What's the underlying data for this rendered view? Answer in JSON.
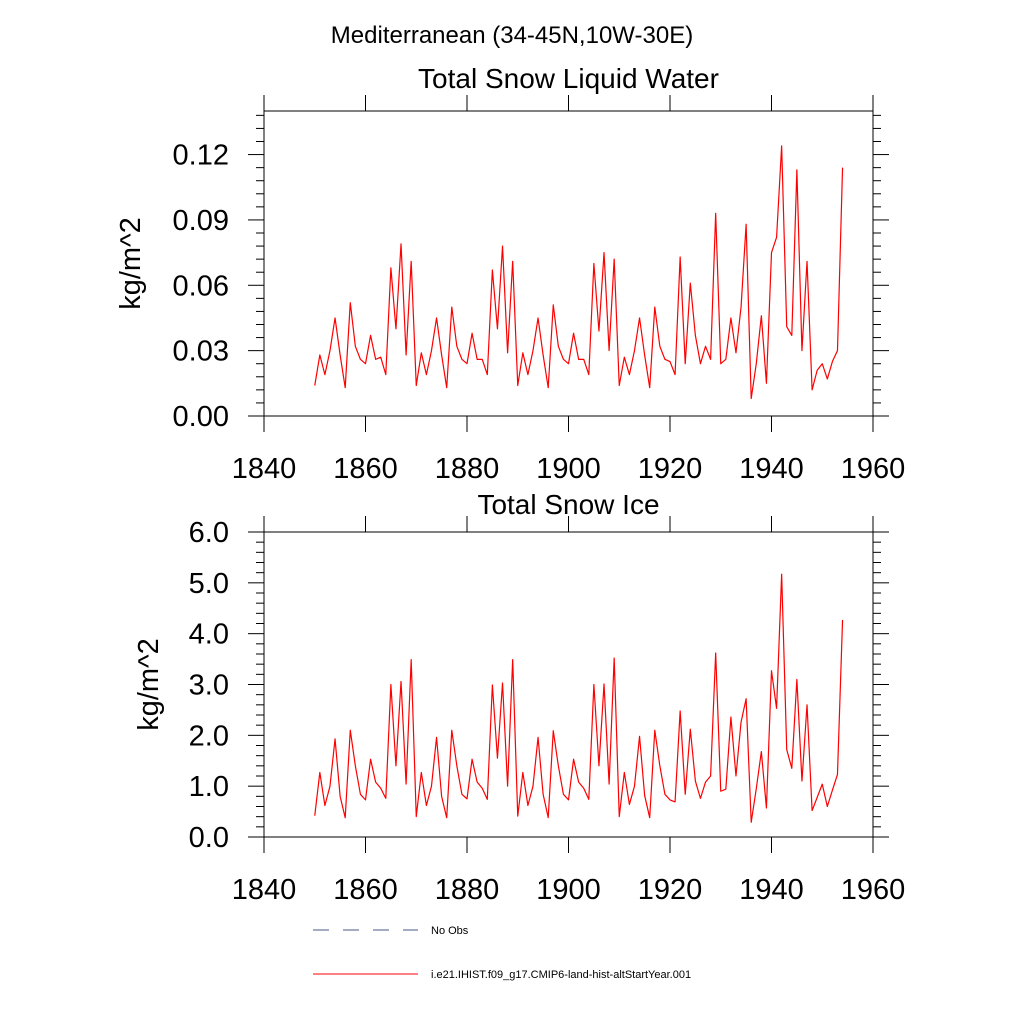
{
  "figure_title": "Mediterranean (34-45N,10W-30E)",
  "legend": {
    "obs_label": "No Obs",
    "model_label": "i.e21.IHIST.f09_g17.CMIP6-land-hist-altStartYear.001",
    "obs_color": "#4a5a8a",
    "model_color": "#ff0000"
  },
  "chart_data": [
    {
      "type": "line",
      "title": "Total Snow Liquid Water",
      "xlabel": "",
      "ylabel": "kg/m^2",
      "xlim": [
        1840,
        1960
      ],
      "ylim": [
        0,
        0.14
      ],
      "xticks": [
        1840,
        1860,
        1880,
        1900,
        1920,
        1940,
        1960
      ],
      "xtick_labels": [
        "1840",
        "1860",
        "1880",
        "1900",
        "1920",
        "1940",
        "1960"
      ],
      "yticks": [
        0,
        0.03,
        0.06,
        0.09,
        0.12
      ],
      "ytick_labels": [
        "0.00",
        "0.03",
        "0.06",
        "0.09",
        "0.12"
      ],
      "grid": false,
      "series": [
        {
          "color": "#ff0000",
          "x": [
            1850,
            1851,
            1852,
            1853,
            1854,
            1855,
            1856,
            1857,
            1858,
            1859,
            1860,
            1861,
            1862,
            1863,
            1864,
            1865,
            1866,
            1867,
            1868,
            1869,
            1870,
            1871,
            1872,
            1873,
            1874,
            1875,
            1876,
            1877,
            1878,
            1879,
            1880,
            1881,
            1882,
            1883,
            1884,
            1885,
            1886,
            1887,
            1888,
            1889,
            1890,
            1891,
            1892,
            1893,
            1894,
            1895,
            1896,
            1897,
            1898,
            1899,
            1900,
            1901,
            1902,
            1903,
            1904,
            1905,
            1906,
            1907,
            1908,
            1909,
            1910,
            1911,
            1912,
            1913,
            1914,
            1915,
            1916,
            1917,
            1918,
            1919,
            1920,
            1921,
            1922,
            1923,
            1924,
            1925,
            1926,
            1927,
            1928,
            1929,
            1930,
            1931,
            1932,
            1933,
            1934,
            1935,
            1936,
            1937,
            1938,
            1939,
            1940,
            1941,
            1942,
            1943,
            1944,
            1945,
            1946,
            1947,
            1948,
            1949,
            1950,
            1951,
            1952,
            1953,
            1954
          ],
          "values": [
            0.014,
            0.028,
            0.019,
            0.03,
            0.045,
            0.028,
            0.013,
            0.052,
            0.032,
            0.026,
            0.024,
            0.037,
            0.026,
            0.027,
            0.019,
            0.068,
            0.04,
            0.079,
            0.028,
            0.071,
            0.014,
            0.029,
            0.019,
            0.03,
            0.045,
            0.028,
            0.013,
            0.05,
            0.032,
            0.026,
            0.024,
            0.038,
            0.026,
            0.026,
            0.019,
            0.067,
            0.04,
            0.078,
            0.029,
            0.071,
            0.014,
            0.029,
            0.019,
            0.03,
            0.045,
            0.028,
            0.013,
            0.051,
            0.032,
            0.026,
            0.024,
            0.038,
            0.026,
            0.026,
            0.019,
            0.07,
            0.039,
            0.075,
            0.03,
            0.072,
            0.014,
            0.027,
            0.019,
            0.03,
            0.045,
            0.028,
            0.013,
            0.05,
            0.032,
            0.026,
            0.025,
            0.019,
            0.073,
            0.024,
            0.061,
            0.037,
            0.024,
            0.032,
            0.026,
            0.093,
            0.024,
            0.026,
            0.045,
            0.029,
            0.05,
            0.088,
            0.008,
            0.024,
            0.046,
            0.015,
            0.075,
            0.082,
            0.124,
            0.041,
            0.037,
            0.113,
            0.03,
            0.071,
            0.012,
            0.021,
            0.024,
            0.017,
            0.025,
            0.03,
            0.114
          ]
        }
      ]
    },
    {
      "type": "line",
      "title": "Total Snow Ice",
      "xlabel": "",
      "ylabel": "kg/m^2",
      "xlim": [
        1840,
        1960
      ],
      "ylim": [
        0,
        6
      ],
      "xticks": [
        1840,
        1860,
        1880,
        1900,
        1920,
        1940,
        1960
      ],
      "xtick_labels": [
        "1840",
        "1860",
        "1880",
        "1900",
        "1920",
        "1940",
        "1960"
      ],
      "yticks": [
        0,
        1,
        2,
        3,
        4,
        5,
        6
      ],
      "ytick_labels": [
        "0.0",
        "1.0",
        "2.0",
        "3.0",
        "4.0",
        "5.0",
        "6.0"
      ],
      "grid": false,
      "series": [
        {
          "color": "#ff0000",
          "x": [
            1850,
            1851,
            1852,
            1853,
            1854,
            1855,
            1856,
            1857,
            1858,
            1859,
            1860,
            1861,
            1862,
            1863,
            1864,
            1865,
            1866,
            1867,
            1868,
            1869,
            1870,
            1871,
            1872,
            1873,
            1874,
            1875,
            1876,
            1877,
            1878,
            1879,
            1880,
            1881,
            1882,
            1883,
            1884,
            1885,
            1886,
            1887,
            1888,
            1889,
            1890,
            1891,
            1892,
            1893,
            1894,
            1895,
            1896,
            1897,
            1898,
            1899,
            1900,
            1901,
            1902,
            1903,
            1904,
            1905,
            1906,
            1907,
            1908,
            1909,
            1910,
            1911,
            1912,
            1913,
            1914,
            1915,
            1916,
            1917,
            1918,
            1919,
            1920,
            1921,
            1922,
            1923,
            1924,
            1925,
            1926,
            1927,
            1928,
            1929,
            1930,
            1931,
            1932,
            1933,
            1934,
            1935,
            1936,
            1937,
            1938,
            1939,
            1940,
            1941,
            1942,
            1943,
            1944,
            1945,
            1946,
            1947,
            1948,
            1949,
            1950,
            1951,
            1952,
            1953,
            1954
          ],
          "values": [
            0.42,
            1.27,
            0.62,
            1.0,
            1.93,
            0.8,
            0.38,
            2.1,
            1.4,
            0.84,
            0.73,
            1.53,
            1.08,
            0.96,
            0.76,
            3.0,
            1.4,
            3.06,
            1.04,
            3.49,
            0.4,
            1.27,
            0.62,
            1.0,
            1.96,
            0.8,
            0.38,
            2.1,
            1.4,
            0.84,
            0.75,
            1.53,
            1.08,
            0.96,
            0.74,
            2.99,
            1.55,
            3.03,
            1.0,
            3.49,
            0.41,
            1.27,
            0.62,
            1.0,
            1.96,
            0.84,
            0.38,
            2.09,
            1.4,
            0.84,
            0.73,
            1.53,
            1.08,
            0.96,
            0.74,
            3.0,
            1.4,
            3.01,
            1.04,
            3.52,
            0.4,
            1.27,
            0.64,
            1.0,
            1.98,
            0.82,
            0.38,
            2.1,
            1.4,
            0.84,
            0.73,
            0.69,
            2.48,
            0.84,
            2.12,
            1.1,
            0.76,
            1.08,
            1.2,
            3.62,
            0.9,
            0.94,
            2.36,
            1.2,
            2.26,
            2.72,
            0.29,
            0.95,
            1.68,
            0.57,
            3.27,
            2.53,
            5.17,
            1.72,
            1.35,
            3.1,
            1.1,
            2.6,
            0.52,
            0.78,
            1.04,
            0.6,
            0.92,
            1.23,
            4.27
          ]
        }
      ]
    }
  ]
}
